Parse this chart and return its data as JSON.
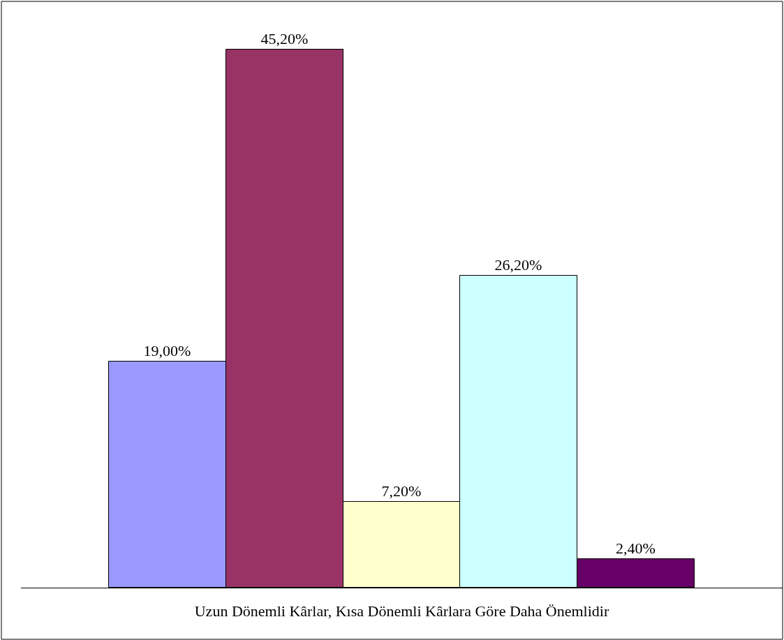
{
  "chart_data": {
    "type": "bar",
    "xlabel": "Uzun Dönemli Kârlar, Kısa Dönemli Kârlara Göre Daha Önemlidir",
    "categories": [
      null,
      null,
      null,
      null,
      null
    ],
    "values": [
      19.0,
      45.2,
      7.2,
      26.2,
      2.4
    ],
    "value_labels": [
      "19,00%",
      "45,20%",
      "7,20%",
      "26,20%",
      "2,40%"
    ],
    "colors": [
      "#9999ff",
      "#993366",
      "#ffffcc",
      "#ccffff",
      "#660066"
    ],
    "tick_labels": false,
    "legend": false
  }
}
